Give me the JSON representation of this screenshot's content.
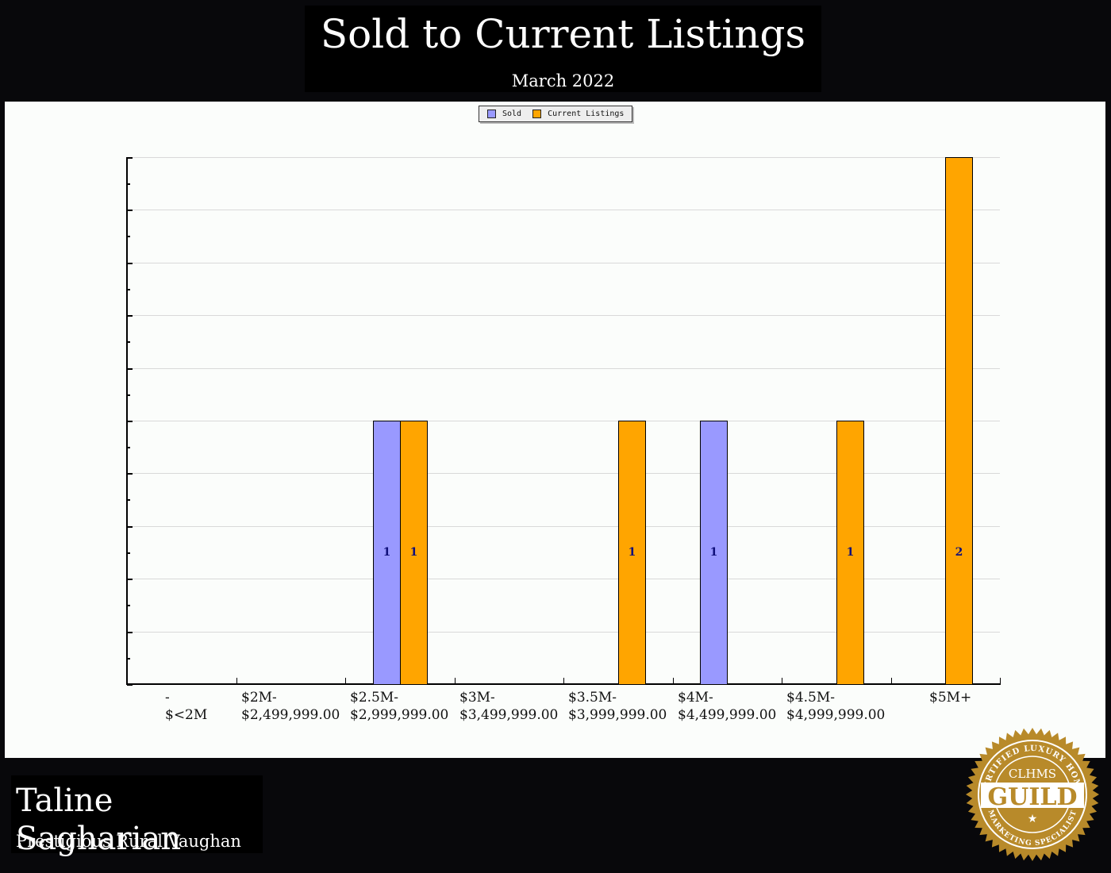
{
  "header": {
    "title": "Sold to Current Listings",
    "subtitle": "March 2022"
  },
  "legend": {
    "items": [
      {
        "label": "Sold",
        "color": "#9999ff"
      },
      {
        "label": "Current Listings",
        "color": "#ffa500"
      }
    ]
  },
  "footer": {
    "agent_name": "Taline Sagharian",
    "area": "Prestigious Rural Vaughan",
    "badge": {
      "top_text": "CERTIFIED LUXURY HOME",
      "abbr": "CLHMS",
      "main": "GUILD",
      "bottom_text": "MARKETING SPECIALIST",
      "color": "#b88a2a"
    }
  },
  "x_labels": [
    {
      "line1": "-",
      "line2": "$<2M"
    },
    {
      "line1": "$2M-",
      "line2": "$2,499,999.00"
    },
    {
      "line1": "$2.5M-",
      "line2": "$2,999,999.00"
    },
    {
      "line1": "$3M-",
      "line2": "$3,499,999.00"
    },
    {
      "line1": "$3.5M-",
      "line2": "$3,999,999.00"
    },
    {
      "line1": "$4M-",
      "line2": "$4,499,999.00"
    },
    {
      "line1": "$4.5M-",
      "line2": "$4,999,999.00"
    },
    {
      "line1": "$5M+",
      "line2": ""
    }
  ],
  "chart_data": {
    "type": "bar",
    "title": "Sold to Current Listings",
    "subtitle": "March 2022",
    "categories": [
      "- $<2M",
      "$2M-$2,499,999.00",
      "$2.5M-$2,999,999.00",
      "$3M-$3,499,999.00",
      "$3.5M-$3,999,999.00",
      "$4M-$4,499,999.00",
      "$4.5M-$4,999,999.00",
      "$5M+"
    ],
    "series": [
      {
        "name": "Sold",
        "color": "#9999ff",
        "values": [
          0,
          0,
          1,
          0,
          0,
          1,
          0,
          0
        ]
      },
      {
        "name": "Current Listings",
        "color": "#ffa500",
        "values": [
          0,
          0,
          1,
          0,
          1,
          0,
          1,
          2
        ]
      }
    ],
    "xlabel": "",
    "ylabel": "",
    "ylim": [
      0,
      2
    ],
    "y_tick_labels_shown": false,
    "grid": true,
    "legend_position": "top-center",
    "data_labels": true
  }
}
